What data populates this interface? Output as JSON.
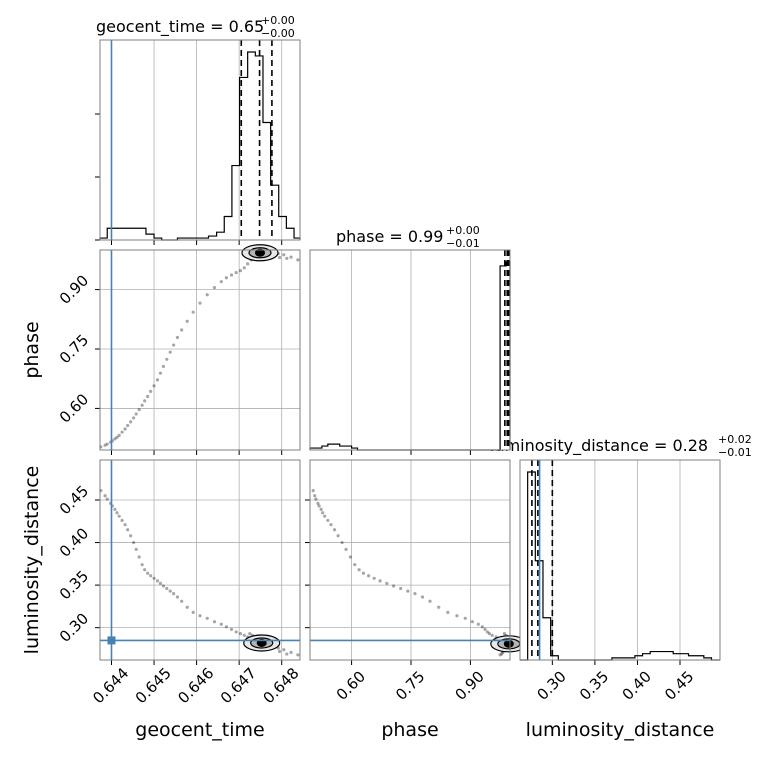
{
  "chart_data": {
    "type": "corner",
    "parameters": [
      "geocent_time",
      "phase",
      "luminosity_distance"
    ],
    "axis_labels": {
      "geocent_time": "geocent_time",
      "phase": "phase",
      "luminosity_distance": "luminosity_distance"
    },
    "titles": [
      {
        "param": "geocent_time",
        "label": "geocent_time",
        "value": "0.65",
        "plus": "+0.00",
        "minus": "−0.00"
      },
      {
        "param": "phase",
        "label": "phase",
        "value": "0.99",
        "plus": "+0.00",
        "minus": "−0.01"
      },
      {
        "param": "luminosity_distance",
        "label": "luminosity_distance",
        "value": "0.28",
        "plus": "+0.02",
        "minus": "−0.01"
      }
    ],
    "ranges": {
      "geocent_time": [
        0.64373,
        0.64843
      ],
      "phase": [
        0.495,
        1.0
      ],
      "luminosity_distance": [
        0.262,
        0.497
      ]
    },
    "ticks": {
      "geocent_time": [
        "0.644",
        "0.645",
        "0.646",
        "0.647",
        "0.648"
      ],
      "phase": [
        "0.60",
        "0.75",
        "0.90"
      ],
      "luminosity_distance": [
        "0.30",
        "0.35",
        "0.40",
        "0.45"
      ]
    },
    "truths": {
      "geocent_time": 0.644,
      "phase": null,
      "luminosity_distance": 0.285
    },
    "quantiles": {
      "geocent_time": [
        0.64705,
        0.64748,
        0.64777
      ],
      "phase": [
        0.987,
        0.993,
        0.997
      ],
      "luminosity_distance": [
        0.276,
        0.283,
        0.3
      ]
    },
    "histograms": {
      "geocent_time": {
        "edges": [
          0.64373,
          0.6439,
          0.64408,
          0.64427,
          0.64445,
          0.64463,
          0.64481,
          0.645,
          0.64518,
          0.64537,
          0.64555,
          0.64573,
          0.64592,
          0.6461,
          0.64628,
          0.64647,
          0.64665,
          0.64683,
          0.64701,
          0.6472,
          0.64738,
          0.64756,
          0.64774,
          0.64793,
          0.64811,
          0.64829,
          0.64843
        ],
        "counts": [
          0.01,
          0.06,
          0.06,
          0.06,
          0.06,
          0.06,
          0.03,
          0.01,
          0.0,
          0.0,
          0.01,
          0.01,
          0.01,
          0.01,
          0.02,
          0.04,
          0.12,
          0.38,
          0.83,
          0.96,
          0.94,
          0.6,
          0.28,
          0.12,
          0.06,
          0.01
        ]
      },
      "phase": {
        "edges": [
          0.495,
          0.51,
          0.525,
          0.54,
          0.555,
          0.57,
          0.585,
          0.6,
          0.615,
          0.63,
          0.645,
          0.66,
          0.675,
          0.69,
          0.705,
          0.72,
          0.735,
          0.75,
          0.765,
          0.78,
          0.795,
          0.81,
          0.825,
          0.84,
          0.855,
          0.87,
          0.885,
          0.9,
          0.915,
          0.93,
          0.945,
          0.96,
          0.975,
          0.99,
          1.0
        ],
        "counts": [
          0.01,
          0.01,
          0.02,
          0.03,
          0.03,
          0.02,
          0.02,
          0.01,
          0.0,
          0.0,
          0.0,
          0.0,
          0.0,
          0.0,
          0.0,
          0.0,
          0.0,
          0.0,
          0.0,
          0.0,
          0.0,
          0.0,
          0.0,
          0.0,
          0.0,
          0.0,
          0.0,
          0.0,
          0.0,
          0.0,
          0.0,
          0.0,
          0.94,
          0.96
        ]
      },
      "luminosity_distance": {
        "edges": [
          0.262,
          0.271,
          0.28,
          0.289,
          0.298,
          0.307,
          0.316,
          0.325,
          0.334,
          0.343,
          0.352,
          0.361,
          0.37,
          0.379,
          0.388,
          0.397,
          0.406,
          0.415,
          0.424,
          0.433,
          0.442,
          0.451,
          0.46,
          0.469,
          0.478,
          0.487,
          0.497
        ],
        "counts": [
          0.0,
          0.89,
          0.47,
          0.2,
          0.02,
          0.0,
          0.0,
          0.0,
          0.0,
          0.0,
          0.0,
          0.0,
          0.01,
          0.01,
          0.01,
          0.02,
          0.03,
          0.04,
          0.04,
          0.04,
          0.03,
          0.03,
          0.02,
          0.02,
          0.01,
          0.0
        ]
      }
    },
    "samples": {
      "geocent_time": [
        0.64375,
        0.64385,
        0.6439,
        0.64398,
        0.64402,
        0.64408,
        0.64413,
        0.64418,
        0.64425,
        0.64432,
        0.64438,
        0.64445,
        0.64452,
        0.64458,
        0.64465,
        0.64472,
        0.64478,
        0.64485,
        0.64492,
        0.645,
        0.64508,
        0.64515,
        0.64522,
        0.6453,
        0.64538,
        0.64546,
        0.64555,
        0.64565,
        0.64578,
        0.64592,
        0.64608,
        0.64625,
        0.64642,
        0.64658,
        0.6467,
        0.64682,
        0.64693,
        0.64703,
        0.64712,
        0.6472,
        0.64728,
        0.64735,
        0.64742,
        0.64748,
        0.64754,
        0.6476,
        0.64765,
        0.64771,
        0.64777,
        0.64784,
        0.64792,
        0.64805,
        0.64822,
        0.64838,
        0.64739,
        0.64751,
        0.64746,
        0.64758,
        0.64768,
        0.64734,
        0.64762,
        0.64744,
        0.64741,
        0.64756,
        0.64725,
        0.64773,
        0.64748,
        0.64752,
        0.64737,
        0.64764,
        0.64749,
        0.64757,
        0.6475,
        0.6474,
        0.64774,
        0.64731,
        0.64795,
        0.64812
      ],
      "phase": [
        0.503,
        0.507,
        0.51,
        0.515,
        0.518,
        0.523,
        0.527,
        0.532,
        0.54,
        0.548,
        0.557,
        0.566,
        0.576,
        0.586,
        0.597,
        0.608,
        0.619,
        0.63,
        0.643,
        0.657,
        0.672,
        0.689,
        0.706,
        0.724,
        0.742,
        0.76,
        0.779,
        0.798,
        0.82,
        0.843,
        0.866,
        0.887,
        0.905,
        0.92,
        0.93,
        0.937,
        0.943,
        0.948,
        0.955,
        0.965,
        0.975,
        0.982,
        0.987,
        0.991,
        0.993,
        0.994,
        0.995,
        0.995,
        0.994,
        0.993,
        0.991,
        0.988,
        0.982,
        0.975,
        0.992,
        0.996,
        0.988,
        0.997,
        0.993,
        0.985,
        0.998,
        0.99,
        0.997,
        0.989,
        0.986,
        0.994,
        0.991,
        0.999,
        0.987,
        0.996,
        0.999,
        0.992,
        0.996,
        0.984,
        0.998,
        0.99,
        0.981,
        0.979
      ],
      "luminosity_distance": [
        0.461,
        0.455,
        0.451,
        0.446,
        0.443,
        0.439,
        0.435,
        0.431,
        0.426,
        0.421,
        0.415,
        0.408,
        0.4,
        0.392,
        0.383,
        0.374,
        0.368,
        0.364,
        0.361,
        0.358,
        0.355,
        0.352,
        0.349,
        0.346,
        0.343,
        0.34,
        0.336,
        0.331,
        0.324,
        0.318,
        0.314,
        0.311,
        0.307,
        0.304,
        0.301,
        0.298,
        0.295,
        0.293,
        0.291,
        0.289,
        0.287,
        0.285,
        0.284,
        0.283,
        0.282,
        0.281,
        0.28,
        0.279,
        0.278,
        0.277,
        0.276,
        0.274,
        0.271,
        0.268,
        0.283,
        0.281,
        0.286,
        0.279,
        0.276,
        0.288,
        0.28,
        0.284,
        0.282,
        0.278,
        0.293,
        0.277,
        0.283,
        0.281,
        0.287,
        0.279,
        0.284,
        0.282,
        0.28,
        0.286,
        0.275,
        0.291,
        0.272,
        0.269
      ]
    },
    "density_cores": {
      "geocent_time_vs_phase": {
        "x": 0.64749,
        "y": 0.993
      },
      "geocent_time_vs_luminosity_distance": {
        "x": 0.64753,
        "y": 0.282
      },
      "phase_vs_luminosity_distance": {
        "x": 0.997,
        "y": 0.281
      }
    },
    "grid": true,
    "colors": {
      "truth": "#4682b4",
      "hist": "#000000",
      "grid": "#b0b0b0",
      "frame": "#7f7f7f"
    }
  }
}
